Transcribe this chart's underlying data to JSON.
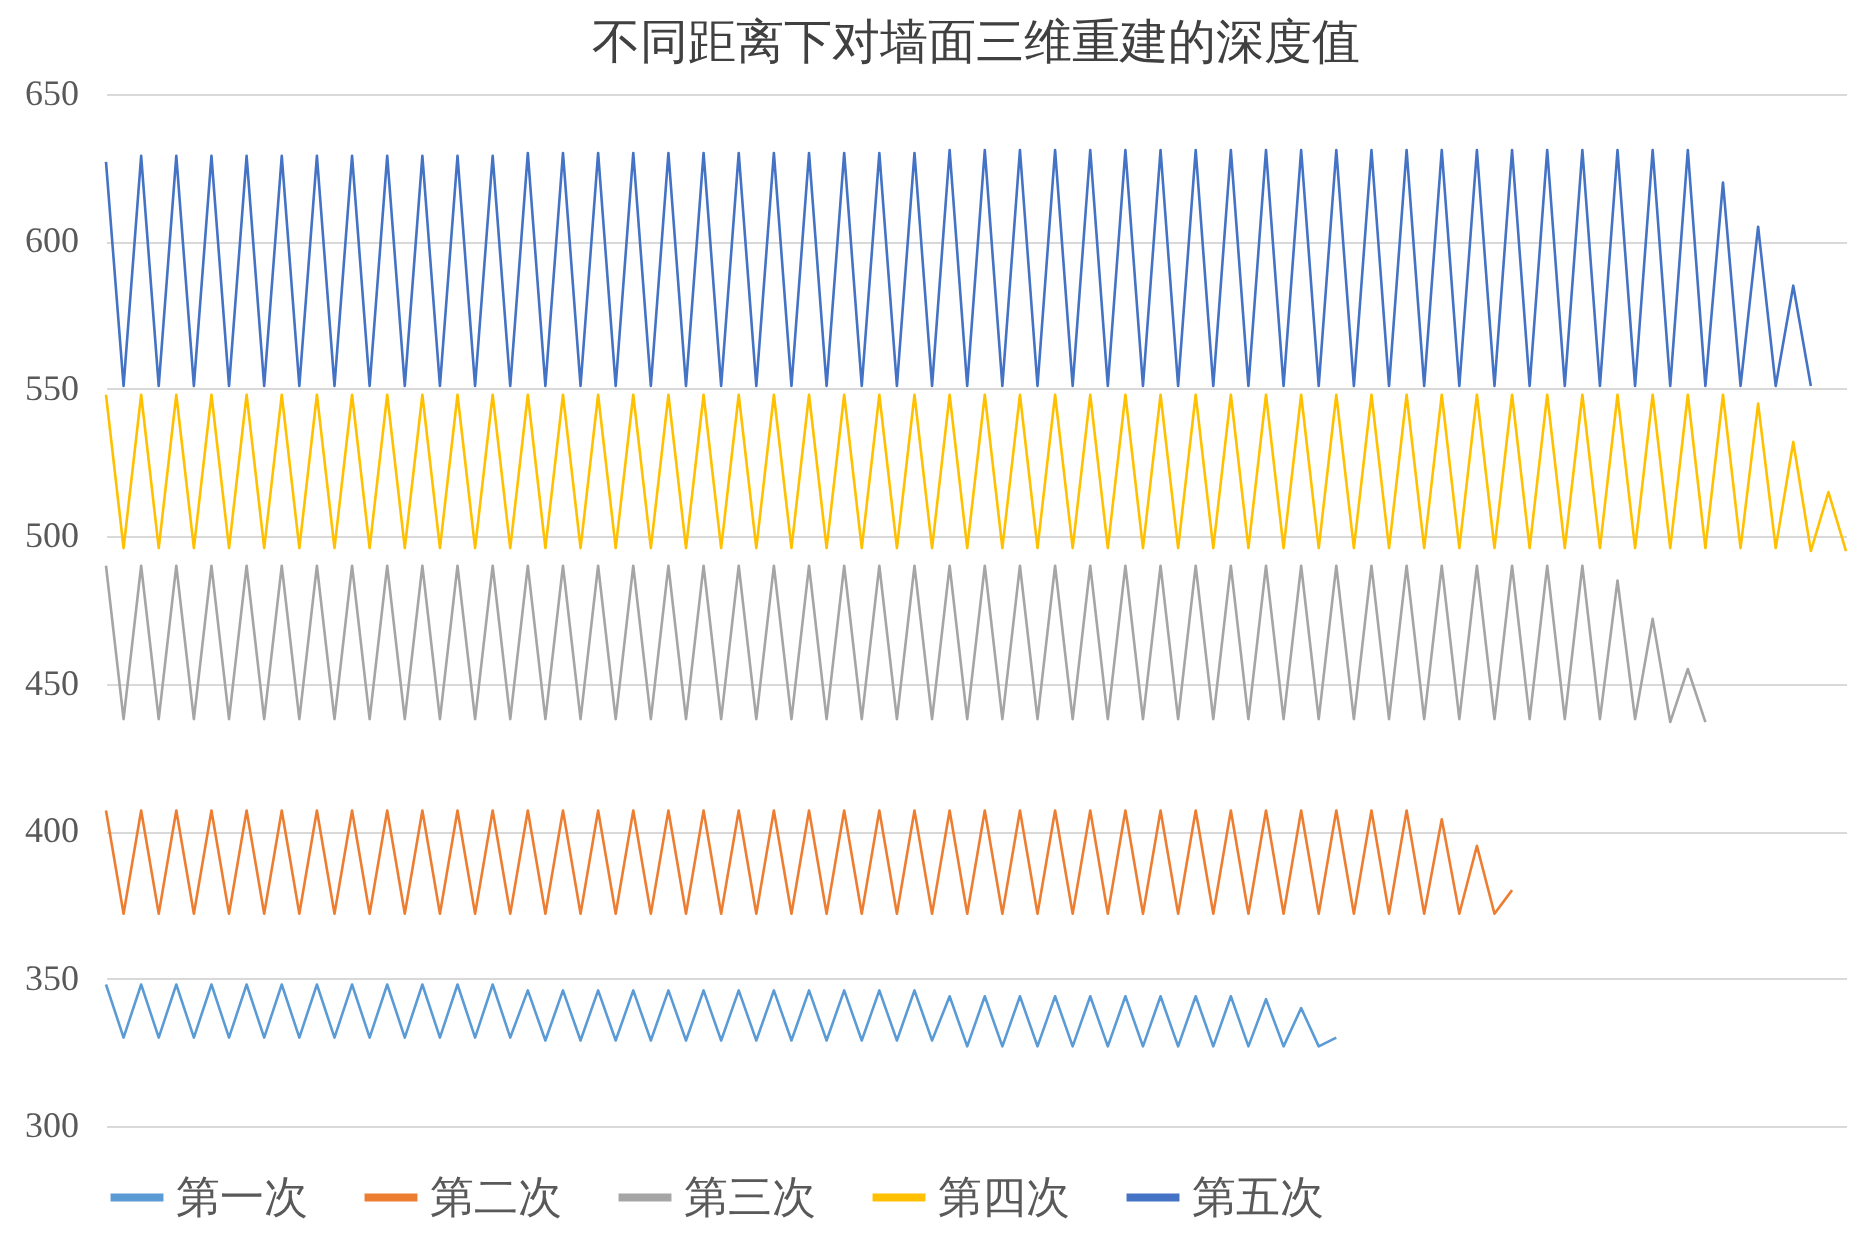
{
  "chart_data": {
    "type": "line",
    "title": "不同距离下对墙面三维重建的深度值",
    "categories": [
      null,
      null,
      null,
      null,
      null,
      null,
      null,
      null,
      null,
      null,
      null,
      null,
      null,
      null,
      null,
      null,
      null,
      null,
      null,
      null,
      null,
      null,
      null,
      null,
      null,
      null,
      null,
      null,
      null,
      null,
      null,
      null,
      null,
      null,
      null,
      null,
      null,
      null,
      null,
      null,
      null,
      null,
      null,
      null,
      null,
      null,
      null,
      null,
      null,
      null,
      null,
      null,
      null,
      null,
      null,
      null,
      null,
      null,
      null,
      null,
      null,
      null,
      null,
      null,
      null,
      null,
      null,
      null,
      null,
      null,
      null,
      null,
      null,
      null,
      null,
      null,
      null,
      null,
      null,
      null,
      null,
      null,
      null,
      null,
      null,
      null,
      null,
      null,
      null,
      null,
      null,
      null,
      null,
      null,
      null,
      null,
      null,
      null,
      null,
      null
    ],
    "series": [
      {
        "name": "第一次",
        "color": "#5b9bd5",
        "values": [
          348,
          330,
          348,
          330,
          348,
          330,
          348,
          330,
          348,
          330,
          348,
          330,
          348,
          330,
          348,
          330,
          348,
          330,
          348,
          330,
          348,
          330,
          348,
          330,
          346,
          329,
          346,
          329,
          346,
          329,
          346,
          329,
          346,
          329,
          346,
          329,
          346,
          329,
          346,
          329,
          346,
          329,
          346,
          329,
          346,
          329,
          346,
          329,
          344,
          327,
          344,
          327,
          344,
          327,
          344,
          327,
          344,
          327,
          344,
          327,
          344,
          327,
          344,
          327,
          344,
          327,
          343,
          327,
          340,
          327,
          330,
          null,
          null,
          null,
          null,
          null,
          null,
          null,
          null,
          null,
          null,
          null,
          null,
          null,
          null,
          null,
          null,
          null,
          null,
          null,
          null,
          null,
          null,
          null,
          null,
          null,
          null,
          null,
          null,
          null
        ]
      },
      {
        "name": "第二次",
        "color": "#ed7d31",
        "values": [
          407,
          372,
          407,
          372,
          407,
          372,
          407,
          372,
          407,
          372,
          407,
          372,
          407,
          372,
          407,
          372,
          407,
          372,
          407,
          372,
          407,
          372,
          407,
          372,
          407,
          372,
          407,
          372,
          407,
          372,
          407,
          372,
          407,
          372,
          407,
          372,
          407,
          372,
          407,
          372,
          407,
          372,
          407,
          372,
          407,
          372,
          407,
          372,
          407,
          372,
          407,
          372,
          407,
          372,
          407,
          372,
          407,
          372,
          407,
          372,
          407,
          372,
          407,
          372,
          407,
          372,
          407,
          372,
          407,
          372,
          407,
          372,
          407,
          372,
          407,
          372,
          404,
          372,
          395,
          372,
          380,
          null,
          null,
          null,
          null,
          null,
          null,
          null,
          null,
          null,
          null,
          null,
          null,
          null,
          null,
          null,
          null,
          null,
          null,
          null
        ]
      },
      {
        "name": "第三次",
        "color": "#a5a5a5",
        "values": [
          490,
          438,
          490,
          438,
          490,
          438,
          490,
          438,
          490,
          438,
          490,
          438,
          490,
          438,
          490,
          438,
          490,
          438,
          490,
          438,
          490,
          438,
          490,
          438,
          490,
          438,
          490,
          438,
          490,
          438,
          490,
          438,
          490,
          438,
          490,
          438,
          490,
          438,
          490,
          438,
          490,
          438,
          490,
          438,
          490,
          438,
          490,
          438,
          490,
          438,
          490,
          438,
          490,
          438,
          490,
          438,
          490,
          438,
          490,
          438,
          490,
          438,
          490,
          438,
          490,
          438,
          490,
          438,
          490,
          438,
          490,
          438,
          490,
          438,
          490,
          438,
          490,
          438,
          490,
          438,
          490,
          438,
          490,
          438,
          490,
          438,
          485,
          438,
          472,
          437,
          455,
          437,
          null,
          null,
          null,
          null,
          null,
          null,
          null,
          null
        ]
      },
      {
        "name": "第四次",
        "color": "#ffc000",
        "values": [
          548,
          496,
          548,
          496,
          548,
          496,
          548,
          496,
          548,
          496,
          548,
          496,
          548,
          496,
          548,
          496,
          548,
          496,
          548,
          496,
          548,
          496,
          548,
          496,
          548,
          496,
          548,
          496,
          548,
          496,
          548,
          496,
          548,
          496,
          548,
          496,
          548,
          496,
          548,
          496,
          548,
          496,
          548,
          496,
          548,
          496,
          548,
          496,
          548,
          496,
          548,
          496,
          548,
          496,
          548,
          496,
          548,
          496,
          548,
          496,
          548,
          496,
          548,
          496,
          548,
          496,
          548,
          496,
          548,
          496,
          548,
          496,
          548,
          496,
          548,
          496,
          548,
          496,
          548,
          496,
          548,
          496,
          548,
          496,
          548,
          496,
          548,
          496,
          548,
          496,
          548,
          496,
          548,
          496,
          545,
          496,
          532,
          495,
          515,
          495
        ]
      },
      {
        "name": "第五次",
        "color": "#4472c4",
        "values": [
          627,
          551,
          629,
          551,
          629,
          551,
          629,
          551,
          629,
          551,
          629,
          551,
          629,
          551,
          629,
          551,
          629,
          551,
          629,
          551,
          629,
          551,
          629,
          551,
          630,
          551,
          630,
          551,
          630,
          551,
          630,
          551,
          630,
          551,
          630,
          551,
          630,
          551,
          630,
          551,
          630,
          551,
          630,
          551,
          630,
          551,
          630,
          551,
          631,
          551,
          631,
          551,
          631,
          551,
          631,
          551,
          631,
          551,
          631,
          551,
          631,
          551,
          631,
          551,
          631,
          551,
          631,
          551,
          631,
          551,
          631,
          551,
          631,
          551,
          631,
          551,
          631,
          551,
          631,
          551,
          631,
          551,
          631,
          551,
          631,
          551,
          631,
          551,
          631,
          551,
          631,
          551,
          620,
          551,
          605,
          551,
          585,
          551,
          null,
          null
        ]
      }
    ],
    "ylim": [
      300,
      650
    ],
    "yticks": [
      300,
      350,
      400,
      450,
      500,
      550,
      600,
      650
    ],
    "grid": "y",
    "legend": "bottom"
  }
}
